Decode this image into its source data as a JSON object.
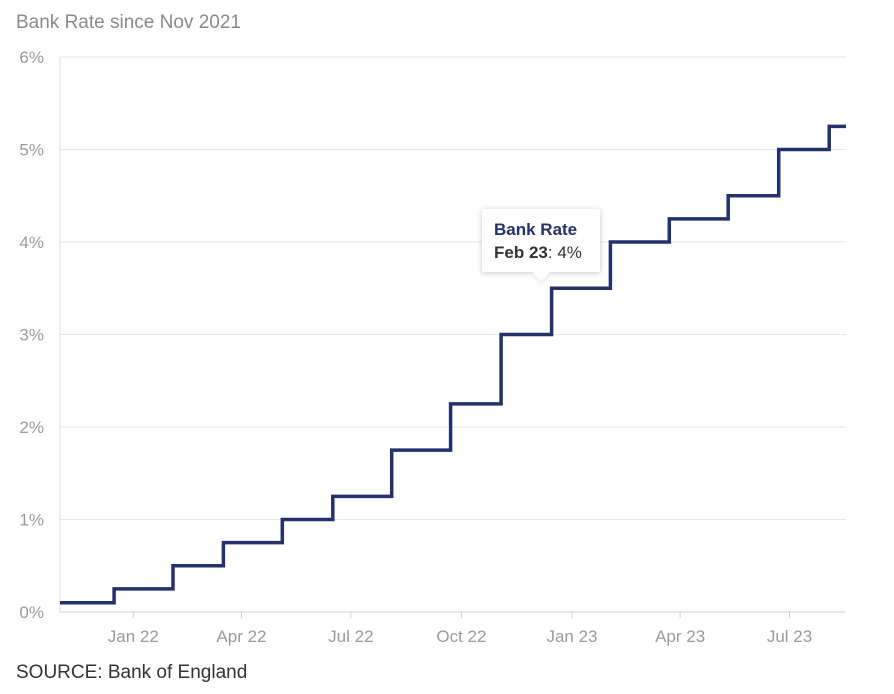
{
  "chart_data": {
    "type": "line",
    "step": true,
    "title": "Bank Rate since Nov 2021",
    "source": "SOURCE: Bank of England",
    "xlabel": "",
    "ylabel": "",
    "ylim": [
      0,
      6
    ],
    "y_ticks": [
      "0%",
      "1%",
      "2%",
      "3%",
      "4%",
      "5%",
      "6%"
    ],
    "y_tick_values": [
      0,
      1,
      2,
      3,
      4,
      5,
      6
    ],
    "x_range": [
      "2021-11-01",
      "2023-08-17"
    ],
    "x_ticks": [
      {
        "date": "2022-01-01",
        "label": "Jan 22"
      },
      {
        "date": "2022-04-01",
        "label": "Apr 22"
      },
      {
        "date": "2022-07-01",
        "label": "Jul 22"
      },
      {
        "date": "2022-10-01",
        "label": "Oct 22"
      },
      {
        "date": "2023-01-01",
        "label": "Jan 23"
      },
      {
        "date": "2023-04-01",
        "label": "Apr 23"
      },
      {
        "date": "2023-07-01",
        "label": "Jul 23"
      }
    ],
    "grid": true,
    "line_color": "#24316b",
    "series": [
      {
        "name": "Bank Rate",
        "points": [
          {
            "date": "2021-11-01",
            "value": 0.1
          },
          {
            "date": "2021-12-16",
            "value": 0.25
          },
          {
            "date": "2022-02-03",
            "value": 0.5
          },
          {
            "date": "2022-03-17",
            "value": 0.75
          },
          {
            "date": "2022-05-05",
            "value": 1.0
          },
          {
            "date": "2022-06-16",
            "value": 1.25
          },
          {
            "date": "2022-08-04",
            "value": 1.75
          },
          {
            "date": "2022-09-22",
            "value": 2.25
          },
          {
            "date": "2022-11-03",
            "value": 3.0
          },
          {
            "date": "2022-12-15",
            "value": 3.5
          },
          {
            "date": "2023-02-02",
            "value": 4.0
          },
          {
            "date": "2023-03-23",
            "value": 4.25
          },
          {
            "date": "2023-05-11",
            "value": 4.5
          },
          {
            "date": "2023-06-22",
            "value": 5.0
          },
          {
            "date": "2023-08-03",
            "value": 5.25
          }
        ]
      }
    ],
    "tooltip": {
      "series": "Bank Rate",
      "date": "Feb 23",
      "value": "4%"
    }
  }
}
